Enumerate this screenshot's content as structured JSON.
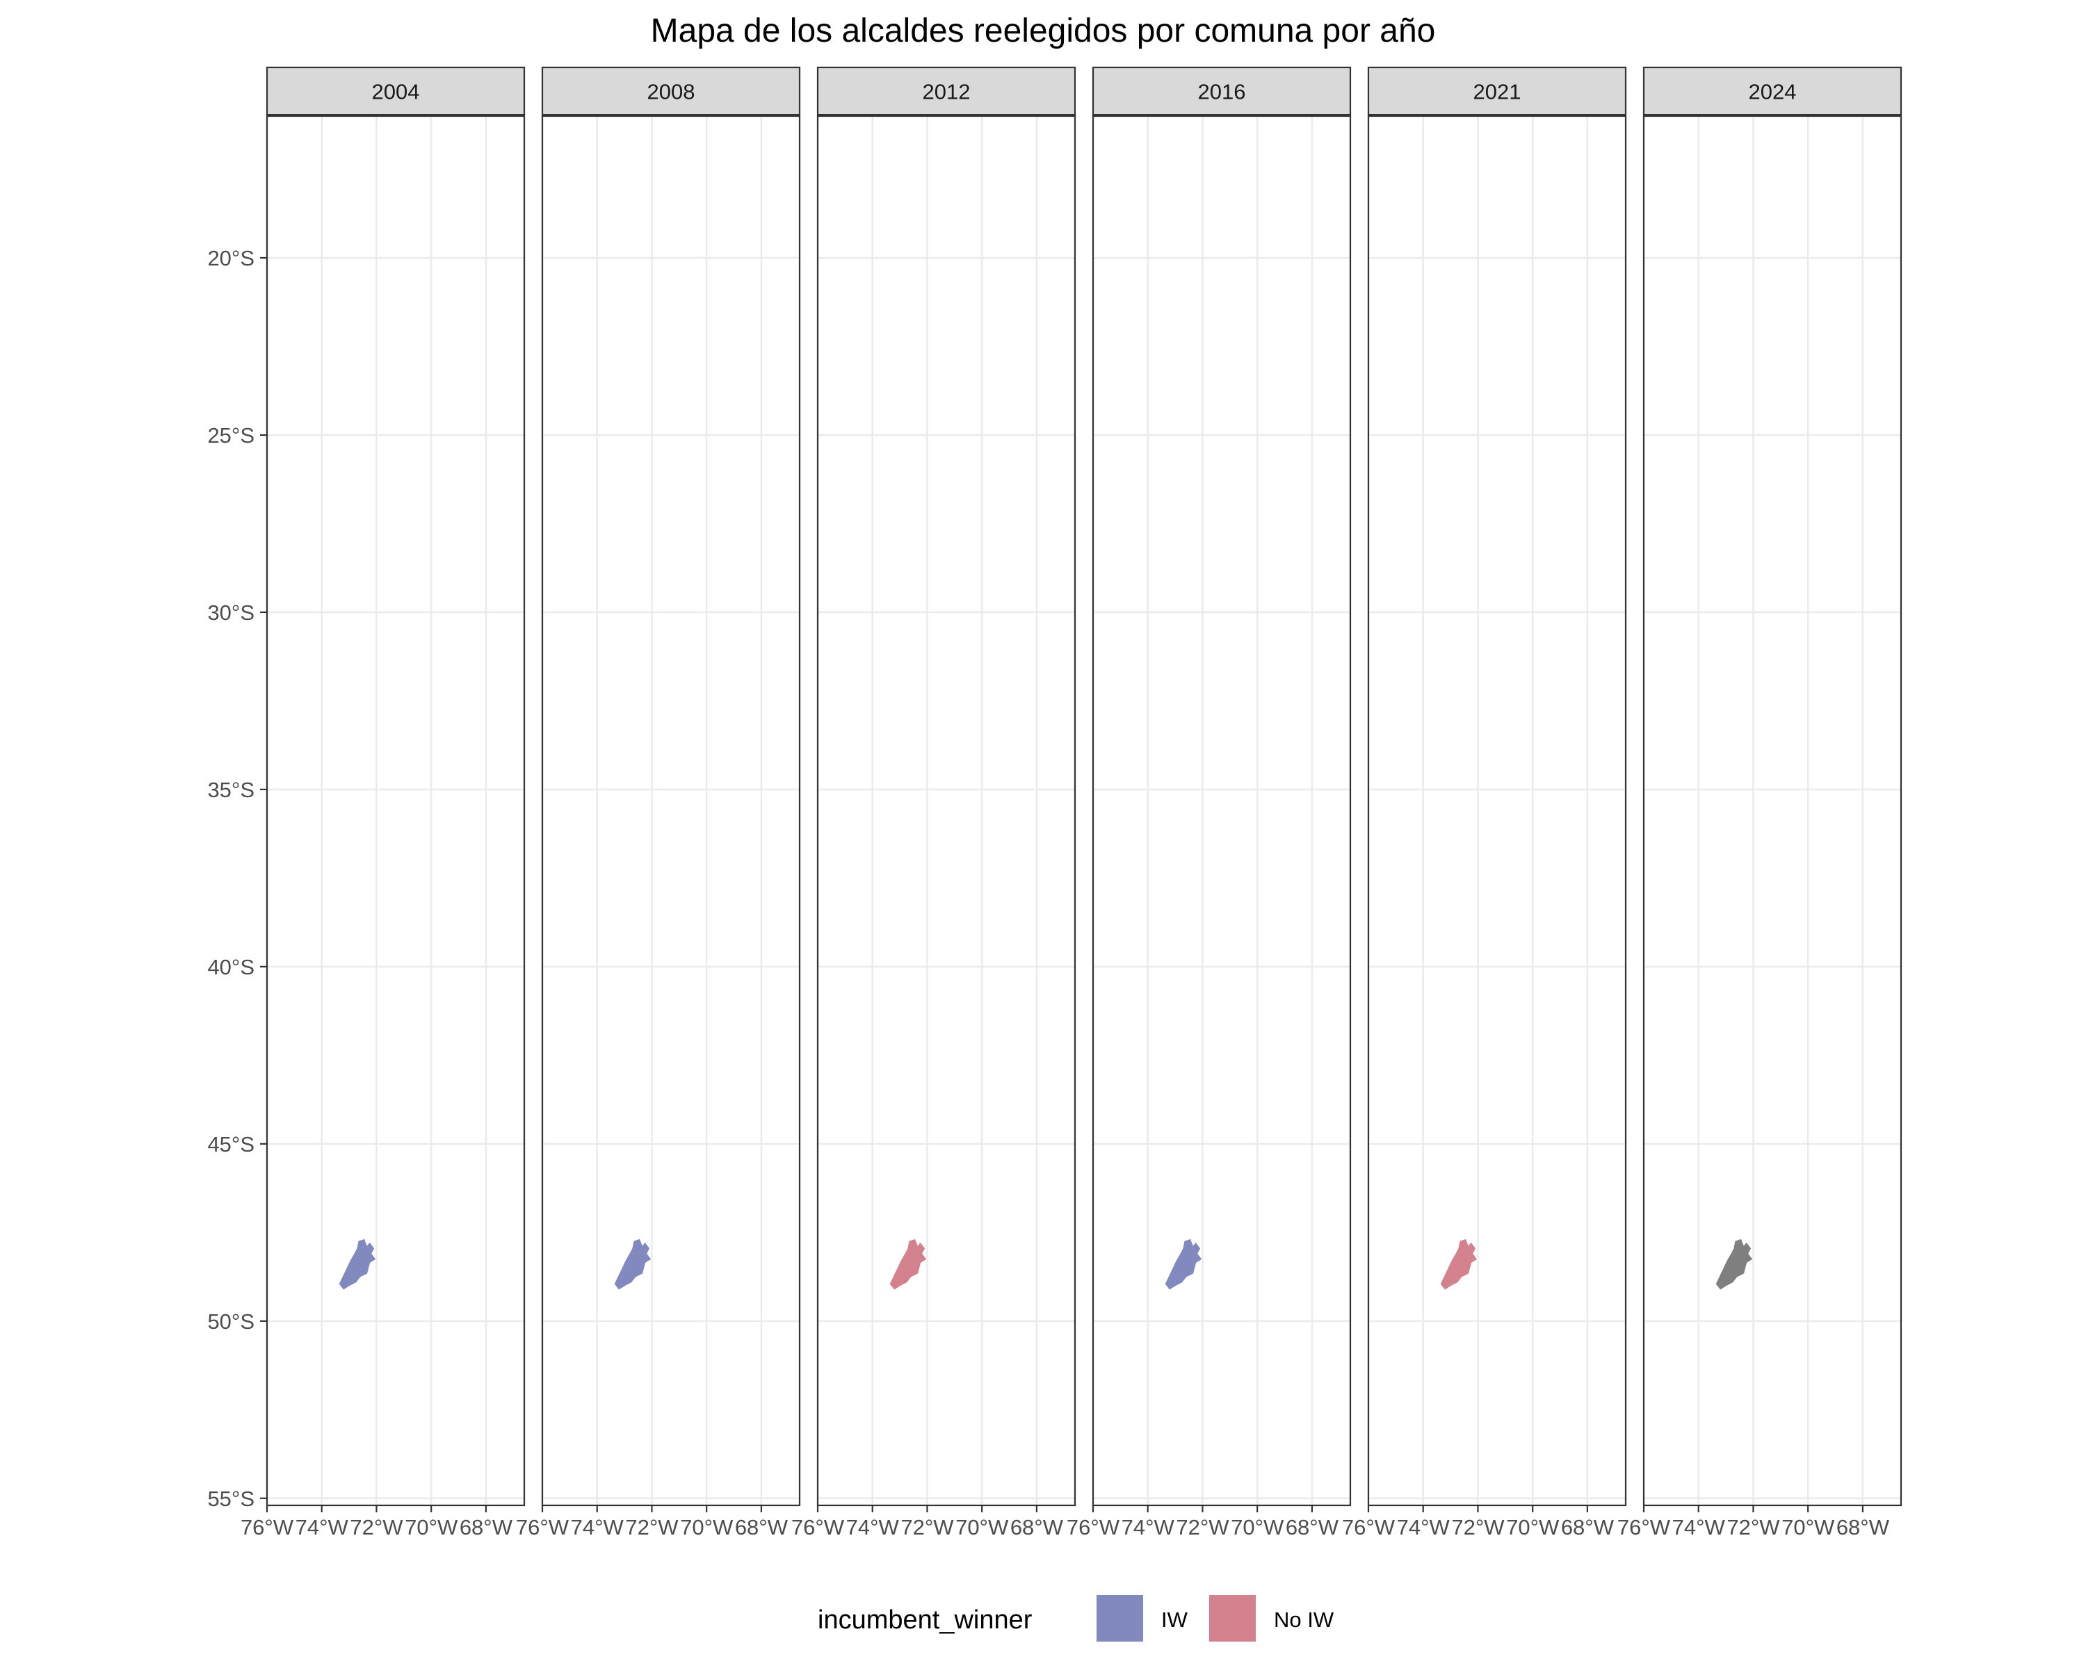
{
  "chart_data": {
    "type": "map",
    "title": "Mapa de los alcaldes reelegidos por comuna por año",
    "facets": [
      "2004",
      "2008",
      "2012",
      "2016",
      "2021",
      "2024"
    ],
    "x_ticks": [
      "76°W",
      "74°W",
      "72°W",
      "70°W",
      "68°W"
    ],
    "x_tick_values": [
      -76,
      -74,
      -72,
      -70,
      -68
    ],
    "y_ticks": [
      "20°S",
      "25°S",
      "30°S",
      "35°S",
      "40°S",
      "45°S",
      "50°S",
      "55°S"
    ],
    "y_tick_values": [
      -20,
      -25,
      -30,
      -35,
      -40,
      -45,
      -50,
      -55
    ],
    "xlim": [
      -76,
      -66.6
    ],
    "ylim": [
      -55.2,
      -16
    ],
    "grid": true,
    "legend": {
      "title": "incumbent_winner",
      "position": "bottom",
      "items": [
        {
          "label": "IW",
          "color": "#8189BF"
        },
        {
          "label": "No IW",
          "color": "#D3818C"
        }
      ]
    },
    "regions": [
      {
        "facet": "2004",
        "value": "IW",
        "color": "#8189BF"
      },
      {
        "facet": "2008",
        "value": "IW",
        "color": "#8189BF"
      },
      {
        "facet": "2012",
        "value": "No IW",
        "color": "#D3818C"
      },
      {
        "facet": "2016",
        "value": "IW",
        "color": "#8189BF"
      },
      {
        "facet": "2021",
        "value": "No IW",
        "color": "#D3818C"
      },
      {
        "facet": "2024",
        "value": "NA",
        "color": "#7F7F7F"
      }
    ]
  }
}
